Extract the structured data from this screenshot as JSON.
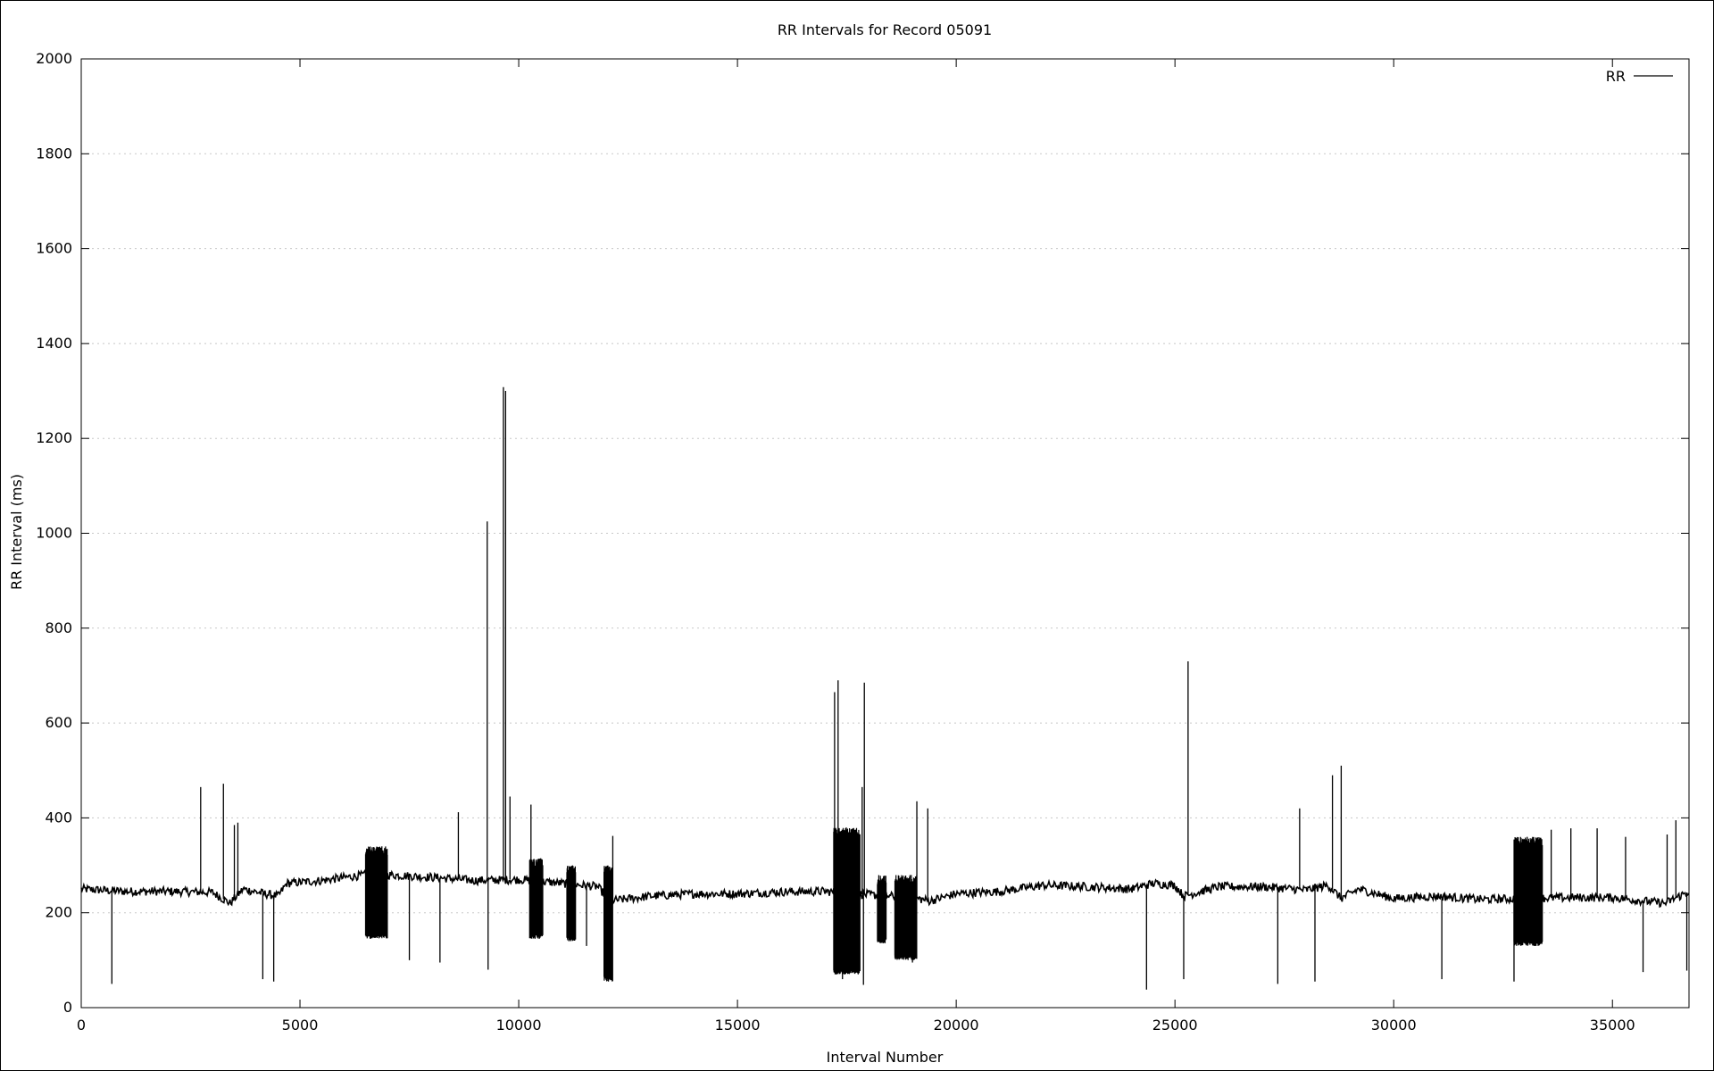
{
  "chart_data": {
    "type": "line",
    "title": "RR Intervals for Record 05091",
    "xlabel": "Interval Number",
    "ylabel": "RR Interval (ms)",
    "xlim": [
      0,
      36750
    ],
    "ylim": [
      0,
      2000
    ],
    "xticks": [
      0,
      5000,
      10000,
      15000,
      20000,
      25000,
      30000,
      35000
    ],
    "yticks": [
      0,
      200,
      400,
      600,
      800,
      1000,
      1200,
      1400,
      1600,
      1800,
      2000
    ],
    "grid": "horizontal dotted",
    "legend_position": "top-right",
    "series": [
      {
        "name": "RR",
        "color": "#000000",
        "baseline": [
          [
            0,
            250
          ],
          [
            1000,
            245
          ],
          [
            2000,
            245
          ],
          [
            3000,
            243
          ],
          [
            3400,
            220
          ],
          [
            3700,
            250
          ],
          [
            4200,
            240
          ],
          [
            4500,
            235
          ],
          [
            4700,
            262
          ],
          [
            5500,
            268
          ],
          [
            6500,
            280
          ],
          [
            7000,
            280
          ],
          [
            8000,
            275
          ],
          [
            9000,
            268
          ],
          [
            10000,
            270
          ],
          [
            11000,
            262
          ],
          [
            11800,
            255
          ],
          [
            12100,
            225
          ],
          [
            13000,
            235
          ],
          [
            14000,
            240
          ],
          [
            15000,
            240
          ],
          [
            16000,
            244
          ],
          [
            17000,
            245
          ],
          [
            18000,
            238
          ],
          [
            19000,
            232
          ],
          [
            19400,
            225
          ],
          [
            20000,
            240
          ],
          [
            21000,
            245
          ],
          [
            22000,
            258
          ],
          [
            23000,
            255
          ],
          [
            24000,
            250
          ],
          [
            24500,
            262
          ],
          [
            25000,
            258
          ],
          [
            25200,
            235
          ],
          [
            26000,
            255
          ],
          [
            27000,
            255
          ],
          [
            28000,
            248
          ],
          [
            28500,
            258
          ],
          [
            28800,
            230
          ],
          [
            29200,
            250
          ],
          [
            30000,
            230
          ],
          [
            31000,
            235
          ],
          [
            32000,
            228
          ],
          [
            33000,
            230
          ],
          [
            34000,
            232
          ],
          [
            35000,
            232
          ],
          [
            36200,
            220
          ],
          [
            36750,
            245
          ]
        ],
        "spikes_up": [
          [
            2730,
            465
          ],
          [
            3250,
            472
          ],
          [
            3500,
            385
          ],
          [
            3580,
            390
          ],
          [
            8620,
            412
          ],
          [
            9280,
            1025
          ],
          [
            9650,
            1308
          ],
          [
            9700,
            1300
          ],
          [
            9800,
            445
          ],
          [
            10280,
            428
          ],
          [
            12150,
            362
          ],
          [
            17220,
            665
          ],
          [
            17300,
            690
          ],
          [
            17900,
            685
          ],
          [
            17850,
            465
          ],
          [
            19100,
            435
          ],
          [
            19350,
            420
          ],
          [
            25300,
            730
          ],
          [
            27850,
            420
          ],
          [
            28600,
            490
          ],
          [
            28800,
            510
          ],
          [
            33050,
            360
          ],
          [
            33600,
            375
          ],
          [
            34050,
            378
          ],
          [
            34650,
            378
          ],
          [
            35300,
            360
          ],
          [
            36250,
            365
          ],
          [
            36450,
            395
          ]
        ],
        "spikes_down": [
          [
            700,
            50
          ],
          [
            4150,
            60
          ],
          [
            4400,
            55
          ],
          [
            7500,
            100
          ],
          [
            8200,
            95
          ],
          [
            9300,
            80
          ],
          [
            11550,
            130
          ],
          [
            12050,
            55
          ],
          [
            17400,
            60
          ],
          [
            17880,
            48
          ],
          [
            18600,
            110
          ],
          [
            19000,
            95
          ],
          [
            24350,
            38
          ],
          [
            25200,
            60
          ],
          [
            27350,
            50
          ],
          [
            28200,
            55
          ],
          [
            31100,
            60
          ],
          [
            32750,
            55
          ],
          [
            35700,
            75
          ],
          [
            36700,
            78
          ]
        ],
        "dense_bands": [
          [
            6500,
            7000,
            145,
            340
          ],
          [
            10250,
            10550,
            145,
            315
          ],
          [
            11100,
            11300,
            140,
            300
          ],
          [
            11950,
            12150,
            55,
            300
          ],
          [
            17200,
            17800,
            70,
            380
          ],
          [
            18200,
            18400,
            135,
            280
          ],
          [
            18600,
            19100,
            100,
            280
          ],
          [
            32750,
            33400,
            130,
            360
          ]
        ]
      }
    ]
  }
}
